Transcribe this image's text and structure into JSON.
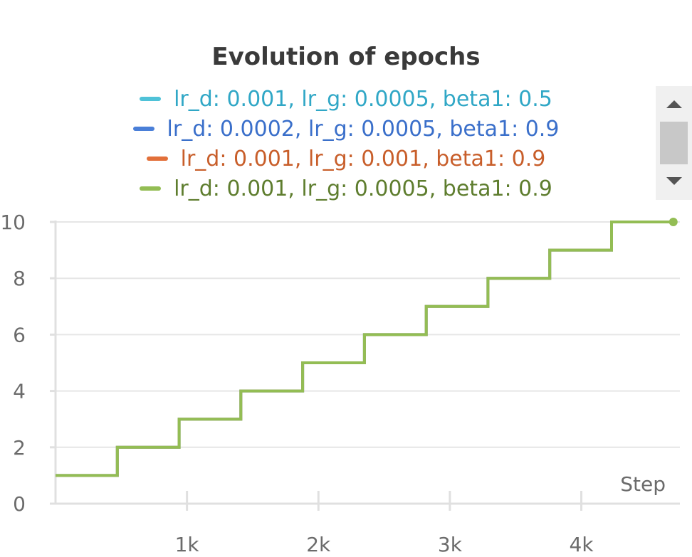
{
  "chart_data": {
    "type": "line",
    "title": "Evolution of epochs",
    "xlabel": "Step",
    "ylabel": "",
    "xlim": [
      0,
      4750
    ],
    "ylim": [
      0,
      10
    ],
    "x_ticks": [
      1000,
      2000,
      3000,
      4000
    ],
    "x_tick_labels": [
      "1k",
      "2k",
      "3k",
      "4k"
    ],
    "y_ticks": [
      0,
      2,
      4,
      6,
      8,
      10
    ],
    "y_tick_labels": [
      "0",
      "2",
      "4",
      "6",
      "8",
      "10"
    ],
    "grid": true,
    "legend_placement": "top",
    "step_x": [
      0,
      470,
      470,
      940,
      940,
      1410,
      1410,
      1880,
      1880,
      2350,
      2350,
      2820,
      2820,
      3290,
      3290,
      3760,
      3760,
      4230,
      4230,
      4700
    ],
    "step_y": [
      1,
      1,
      2,
      2,
      3,
      3,
      4,
      4,
      5,
      5,
      6,
      6,
      7,
      7,
      8,
      8,
      9,
      9,
      10,
      10
    ],
    "series": [
      {
        "name": "lr_d: 0.001, lr_g: 0.0005, beta1: 0.5",
        "color": "#4fc2d8",
        "text_color": "#30a7c6"
      },
      {
        "name": "lr_d: 0.0002, lr_g: 0.0005, beta1: 0.9",
        "color": "#4a7fd8",
        "text_color": "#3a6fca"
      },
      {
        "name": "lr_d: 0.001, lr_g: 0.001, beta1: 0.9",
        "color": "#e2703a",
        "text_color": "#c85e2a"
      },
      {
        "name": "lr_d: 0.001, lr_g: 0.0005, beta1: 0.9",
        "color": "#93bd54",
        "text_color": "#5e7d2e"
      }
    ]
  }
}
